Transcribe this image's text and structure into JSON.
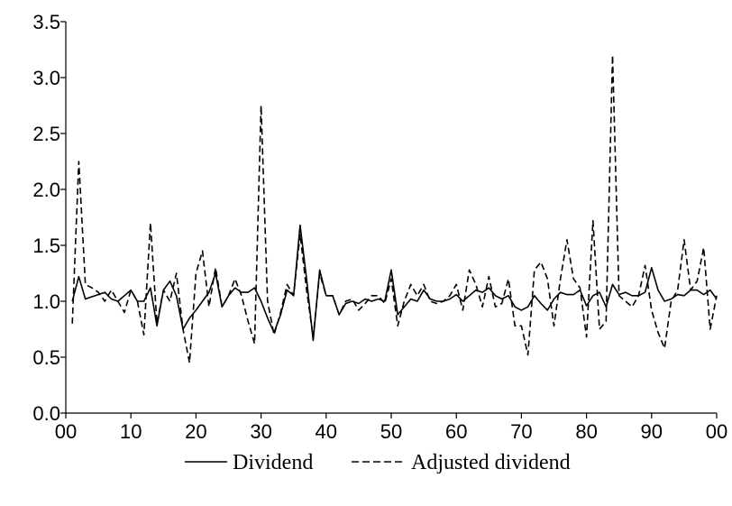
{
  "chart_data": {
    "type": "line",
    "title": "",
    "xlabel": "",
    "ylabel": "",
    "ylim": [
      0.0,
      3.5
    ],
    "xlim": [
      0,
      100
    ],
    "y_ticks": [
      "0.0",
      "0.5",
      "1.0",
      "1.5",
      "2.0",
      "2.5",
      "3.0",
      "3.5"
    ],
    "y_tick_values": [
      0.0,
      0.5,
      1.0,
      1.5,
      2.0,
      2.5,
      3.0,
      3.5
    ],
    "x_ticks": [
      "00",
      "10",
      "20",
      "30",
      "40",
      "50",
      "60",
      "70",
      "80",
      "90",
      "00"
    ],
    "x_tick_values": [
      0,
      10,
      20,
      30,
      40,
      50,
      60,
      70,
      80,
      90,
      100
    ],
    "grid": false,
    "legend_position": "bottom",
    "series": [
      {
        "name": "Dividend",
        "style": "solid",
        "color": "#000000",
        "x": [
          1,
          2,
          3,
          4,
          5,
          6,
          7,
          8,
          9,
          10,
          11,
          12,
          13,
          14,
          15,
          16,
          17,
          18,
          19,
          20,
          21,
          22,
          23,
          24,
          25,
          26,
          27,
          28,
          29,
          30,
          31,
          32,
          33,
          34,
          35,
          36,
          37,
          38,
          39,
          40,
          41,
          42,
          43,
          44,
          45,
          46,
          47,
          48,
          49,
          50,
          51,
          52,
          53,
          54,
          55,
          56,
          57,
          58,
          59,
          60,
          61,
          62,
          63,
          64,
          65,
          66,
          67,
          68,
          69,
          70,
          71,
          72,
          73,
          74,
          75,
          76,
          77,
          78,
          79,
          80,
          81,
          82,
          83,
          84,
          85,
          86,
          87,
          88,
          89,
          90,
          91,
          92,
          93,
          94,
          95,
          96,
          97,
          98,
          99,
          100
        ],
        "values": [
          1.0,
          1.22,
          1.02,
          1.04,
          1.06,
          1.08,
          1.02,
          1.0,
          1.05,
          1.1,
          1.0,
          1.0,
          1.12,
          0.78,
          1.1,
          1.18,
          1.05,
          0.75,
          0.85,
          0.92,
          1.0,
          1.08,
          1.25,
          0.95,
          1.05,
          1.12,
          1.08,
          1.08,
          1.12,
          1.0,
          0.85,
          0.72,
          0.88,
          1.1,
          1.05,
          1.68,
          1.2,
          0.65,
          1.28,
          1.05,
          1.05,
          0.88,
          0.98,
          1.0,
          0.98,
          1.02,
          1.0,
          1.02,
          1.0,
          1.28,
          0.88,
          0.95,
          1.02,
          1.0,
          1.1,
          1.02,
          1.0,
          1.0,
          1.02,
          1.06,
          1.0,
          1.05,
          1.1,
          1.08,
          1.12,
          1.05,
          1.02,
          1.05,
          0.95,
          0.92,
          0.95,
          1.05,
          0.98,
          0.92,
          1.02,
          1.08,
          1.06,
          1.06,
          1.1,
          0.96,
          1.05,
          1.08,
          0.95,
          1.15,
          1.06,
          1.08,
          1.05,
          1.05,
          1.08,
          1.3,
          1.1,
          1.0,
          1.02,
          1.06,
          1.05,
          1.1,
          1.1,
          1.06,
          1.1,
          1.02
        ]
      },
      {
        "name": "Adjusted dividend",
        "style": "dashed",
        "color": "#000000",
        "x": [
          1,
          2,
          3,
          4,
          5,
          6,
          7,
          8,
          9,
          10,
          11,
          12,
          13,
          14,
          15,
          16,
          17,
          18,
          19,
          20,
          21,
          22,
          23,
          24,
          25,
          26,
          27,
          28,
          29,
          30,
          31,
          32,
          33,
          34,
          35,
          36,
          37,
          38,
          39,
          40,
          41,
          42,
          43,
          44,
          45,
          46,
          47,
          48,
          49,
          50,
          51,
          52,
          53,
          54,
          55,
          56,
          57,
          58,
          59,
          60,
          61,
          62,
          63,
          64,
          65,
          66,
          67,
          68,
          69,
          70,
          71,
          72,
          73,
          74,
          75,
          76,
          77,
          78,
          79,
          80,
          81,
          82,
          83,
          84,
          85,
          86,
          87,
          88,
          89,
          90,
          91,
          92,
          93,
          94,
          95,
          96,
          97,
          98,
          99,
          100
        ],
        "values": [
          0.8,
          2.25,
          1.15,
          1.12,
          1.08,
          1.0,
          1.1,
          1.0,
          0.9,
          1.1,
          1.0,
          0.7,
          1.7,
          0.8,
          1.1,
          1.0,
          1.25,
          0.75,
          0.45,
          1.25,
          1.45,
          0.95,
          1.3,
          0.95,
          1.05,
          1.2,
          1.05,
          0.82,
          0.62,
          2.75,
          1.0,
          0.7,
          0.9,
          1.15,
          1.05,
          1.6,
          1.1,
          0.68,
          1.25,
          1.05,
          1.05,
          0.88,
          1.0,
          1.02,
          0.92,
          0.98,
          1.05,
          1.05,
          0.98,
          1.2,
          0.78,
          1.0,
          1.15,
          1.05,
          1.15,
          1.0,
          0.98,
          1.0,
          1.05,
          1.15,
          0.92,
          1.28,
          1.15,
          0.95,
          1.22,
          0.95,
          0.98,
          1.2,
          0.78,
          0.78,
          0.52,
          1.28,
          1.35,
          1.2,
          0.78,
          1.2,
          1.55,
          1.2,
          1.12,
          0.68,
          1.72,
          0.75,
          0.82,
          3.2,
          1.05,
          1.0,
          0.95,
          1.05,
          1.32,
          0.92,
          0.72,
          0.58,
          1.0,
          1.1,
          1.55,
          1.1,
          1.18,
          1.48,
          0.75,
          1.05
        ]
      }
    ]
  }
}
